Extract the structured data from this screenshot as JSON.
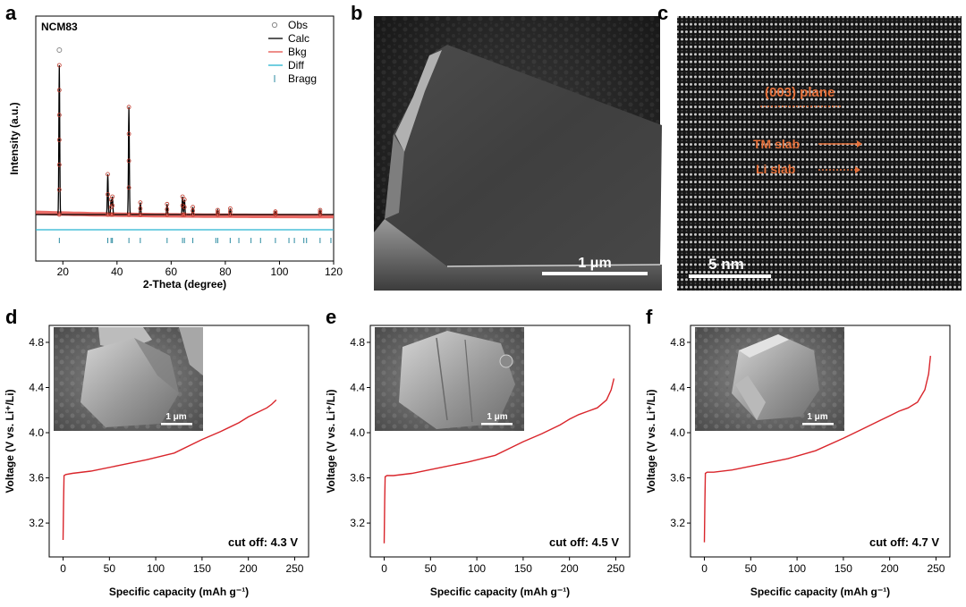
{
  "panel_letters": {
    "a": "a",
    "b": "b",
    "c": "c",
    "d": "d",
    "e": "e",
    "f": "f"
  },
  "micrographs": {
    "b": {
      "scale_label": "1 μm"
    },
    "c": {
      "scale_label": "5 nm",
      "annotations": {
        "plane": "(003) plane",
        "tm_slab": "TM slab",
        "li_slab": "Li slab"
      },
      "annotation_color": "#e4703a"
    }
  },
  "insets": {
    "d": {
      "scale_label": "1 μm"
    },
    "e": {
      "scale_label": "1 μm"
    },
    "f": {
      "scale_label": "1 μm"
    }
  },
  "chart_data": [
    {
      "id": "a",
      "type": "line",
      "title": "NCM83",
      "xlabel": "2-Theta (degree)",
      "ylabel": "Intensity (a.u.)",
      "xlim": [
        10,
        120
      ],
      "xticks": [
        20,
        40,
        60,
        80,
        100,
        120
      ],
      "legend_position": "top-right",
      "legend": [
        {
          "name": "Obs",
          "marker": "circle",
          "color": "#8a8a8a"
        },
        {
          "name": "Calc",
          "marker": "line",
          "color": "#000000"
        },
        {
          "name": "Bkg",
          "marker": "line",
          "color": "#e5504a"
        },
        {
          "name": "Diff",
          "marker": "line",
          "color": "#27b4d0"
        },
        {
          "name": "Bragg",
          "marker": "tick",
          "color": "#2a8aa0"
        }
      ],
      "peaks": [
        {
          "x": 18.7,
          "intensity": 1.0
        },
        {
          "x": 36.6,
          "intensity": 0.27
        },
        {
          "x": 37.8,
          "intensity": 0.1
        },
        {
          "x": 38.3,
          "intensity": 0.12
        },
        {
          "x": 44.4,
          "intensity": 0.72
        },
        {
          "x": 48.6,
          "intensity": 0.08
        },
        {
          "x": 58.5,
          "intensity": 0.07
        },
        {
          "x": 64.2,
          "intensity": 0.12
        },
        {
          "x": 64.9,
          "intensity": 0.1
        },
        {
          "x": 68.0,
          "intensity": 0.05
        },
        {
          "x": 77.2,
          "intensity": 0.03
        },
        {
          "x": 81.8,
          "intensity": 0.04
        },
        {
          "x": 98.5,
          "intensity": 0.02
        },
        {
          "x": 115.0,
          "intensity": 0.03
        }
      ],
      "bragg_positions": [
        18.7,
        36.6,
        37.8,
        38.3,
        44.4,
        48.6,
        58.5,
        64.2,
        64.9,
        68.0,
        76.5,
        77.2,
        81.8,
        85.0,
        89.5,
        93.0,
        98.5,
        103.5,
        105.5,
        109.0,
        110.0,
        115.0,
        119.0
      ]
    },
    {
      "id": "d",
      "type": "line",
      "xlabel": "Specific capacity (mAh g⁻¹)",
      "ylabel": "Voltage (V vs. Li⁺/Li)",
      "xlim": [
        -15,
        265
      ],
      "ylim": [
        2.9,
        4.95
      ],
      "xticks": [
        0,
        50,
        100,
        150,
        200,
        250
      ],
      "yticks": [
        3.2,
        3.6,
        4.0,
        4.4,
        4.8
      ],
      "annotation": "cut off: 4.3 V",
      "series": [
        {
          "color": "#d9252b",
          "x": [
            0,
            0.5,
            1,
            3,
            10,
            30,
            60,
            90,
            120,
            150,
            170,
            190,
            200,
            210,
            220,
            225,
            230
          ],
          "y": [
            3.05,
            3.4,
            3.62,
            3.63,
            3.64,
            3.66,
            3.71,
            3.76,
            3.82,
            3.94,
            4.01,
            4.09,
            4.14,
            4.18,
            4.22,
            4.25,
            4.29
          ]
        }
      ]
    },
    {
      "id": "e",
      "type": "line",
      "xlabel": "Specific capacity (mAh g⁻¹)",
      "ylabel": "Voltage (V vs. Li⁺/Li)",
      "xlim": [
        -15,
        265
      ],
      "ylim": [
        2.9,
        4.95
      ],
      "xticks": [
        0,
        50,
        100,
        150,
        200,
        250
      ],
      "yticks": [
        3.2,
        3.6,
        4.0,
        4.4,
        4.8
      ],
      "annotation": "cut off: 4.5 V",
      "series": [
        {
          "color": "#d9252b",
          "x": [
            0,
            0.5,
            1,
            3,
            10,
            30,
            60,
            90,
            120,
            150,
            170,
            190,
            200,
            210,
            220,
            230,
            240,
            245,
            248
          ],
          "y": [
            3.02,
            3.4,
            3.61,
            3.62,
            3.62,
            3.64,
            3.69,
            3.74,
            3.8,
            3.92,
            3.99,
            4.07,
            4.12,
            4.16,
            4.19,
            4.22,
            4.29,
            4.38,
            4.48
          ]
        }
      ]
    },
    {
      "id": "f",
      "type": "line",
      "xlabel": "Specific capacity (mAh g⁻¹)",
      "ylabel": "Voltage (V vs. Li⁺/Li)",
      "xlim": [
        -15,
        265
      ],
      "ylim": [
        2.9,
        4.95
      ],
      "xticks": [
        0,
        50,
        100,
        150,
        200,
        250
      ],
      "yticks": [
        3.2,
        3.6,
        4.0,
        4.4,
        4.8
      ],
      "annotation": "cut off: 4.7 V",
      "series": [
        {
          "color": "#d9252b",
          "x": [
            0,
            0.5,
            1,
            3,
            10,
            30,
            60,
            90,
            120,
            150,
            170,
            190,
            200,
            210,
            220,
            230,
            238,
            242,
            244
          ],
          "y": [
            3.03,
            3.4,
            3.64,
            3.65,
            3.65,
            3.67,
            3.72,
            3.77,
            3.84,
            3.95,
            4.03,
            4.11,
            4.15,
            4.19,
            4.22,
            4.27,
            4.38,
            4.52,
            4.68
          ]
        }
      ]
    }
  ]
}
